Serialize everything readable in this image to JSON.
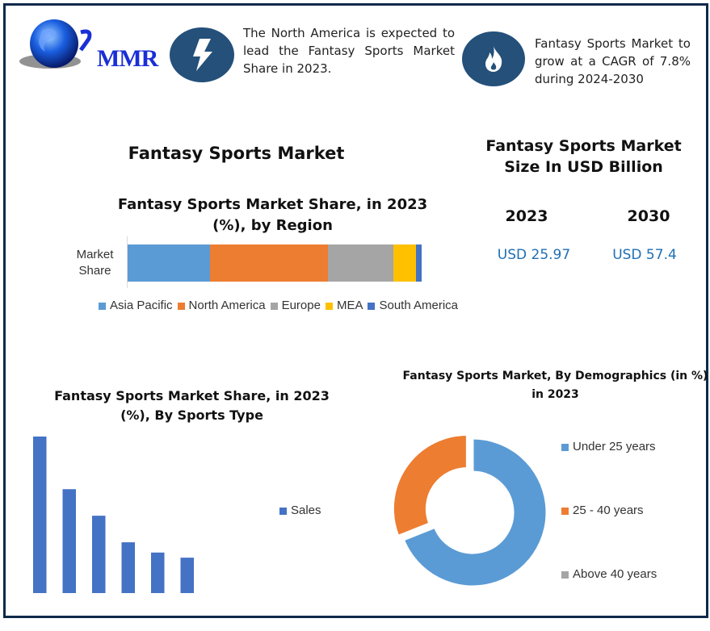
{
  "header": {
    "logo_text": "MMR",
    "note1": "The North America is expected to lead the Fantasy Sports Market Share in 2023.",
    "note1_icon": "lightning-bolt-icon",
    "note2": "Fantasy Sports Market to grow at a CAGR of 7.8% during 2024-2030",
    "note2_icon": "flame-icon"
  },
  "main_title": "Fantasy Sports Market",
  "market_size": {
    "title": "Fantasy Sports Market Size In USD Billion",
    "years": [
      "2023",
      "2030"
    ],
    "values": [
      "USD 25.97",
      "USD 57.4"
    ]
  },
  "colors": {
    "frame": "#0e2a4a",
    "icon_bg": "#24507a",
    "value_text": "#1f6fb5"
  },
  "chart_data": [
    {
      "type": "bar",
      "stacked": true,
      "orientation": "horizontal",
      "title": "Fantasy Sports Market Share, in 2023 (%), by Region",
      "categories": [
        "Market Share"
      ],
      "series": [
        {
          "name": "Asia Pacific",
          "values": [
            28
          ],
          "color": "#5b9bd5"
        },
        {
          "name": "North America",
          "values": [
            40
          ],
          "color": "#ed7d31"
        },
        {
          "name": "Europe",
          "values": [
            22.5
          ],
          "color": "#a5a5a5"
        },
        {
          "name": "MEA",
          "values": [
            7.5
          ],
          "color": "#ffc000"
        },
        {
          "name": "South America",
          "values": [
            2
          ],
          "color": "#4472c4"
        }
      ],
      "legend": "bottom"
    },
    {
      "type": "bar",
      "title": "Fantasy Sports Market Share, in 2023 (%), By Sports Type",
      "series": [
        {
          "name": "Sales",
          "values": [
            33.6,
            22.3,
            16.6,
            10.9,
            8.7,
            7.6
          ],
          "color": "#4472c4"
        }
      ],
      "legend": "right",
      "grid": false
    },
    {
      "type": "pie",
      "donut": true,
      "title": "Fantasy Sports Market, By Demographics (in %) in 2023",
      "labels": [
        "Under 25 years",
        "25 - 40 years",
        "Above 40 years"
      ],
      "values": [
        69,
        31,
        0
      ],
      "colors": [
        "#5b9bd5",
        "#ed7d31",
        "#a5a5a5"
      ],
      "legend": "right"
    }
  ]
}
